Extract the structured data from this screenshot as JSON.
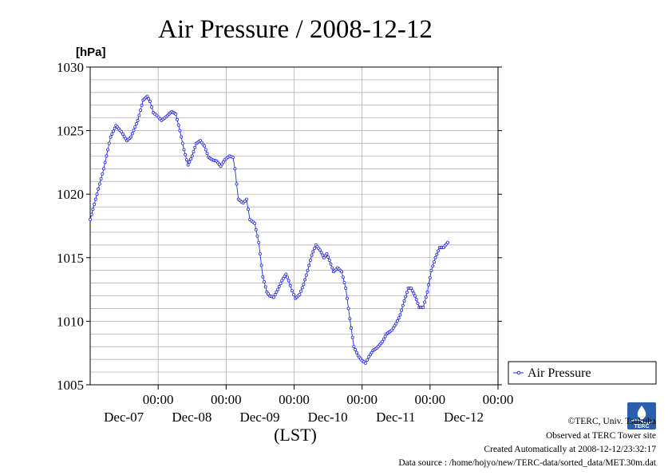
{
  "chart_data": {
    "type": "line",
    "title": "Air Pressure / 2008-12-12",
    "ylabel": "[hPa]",
    "xlabel": "(LST)",
    "ylim": [
      1005,
      1030
    ],
    "yticks": [
      1005,
      1010,
      1015,
      1020,
      1025,
      1030
    ],
    "xlim": [
      0,
      6
    ],
    "xticks": [
      {
        "pos": 1,
        "time": "00:00",
        "date": "Dec-07"
      },
      {
        "pos": 2,
        "time": "00:00",
        "date": "Dec-08"
      },
      {
        "pos": 3,
        "time": "00:00",
        "date": "Dec-09"
      },
      {
        "pos": 4,
        "time": "00:00",
        "date": "Dec-10"
      },
      {
        "pos": 5,
        "time": "00:00",
        "date": "Dec-11"
      },
      {
        "pos": 6,
        "time": "00:00",
        "date": "Dec-12"
      }
    ],
    "grid": true,
    "legend_position": "right",
    "series": [
      {
        "name": "Air Pressure",
        "color": "#2828e0",
        "points": [
          [
            0.0,
            1018.0
          ],
          [
            0.1,
            1020.0
          ],
          [
            0.2,
            1022.0
          ],
          [
            0.3,
            1024.5
          ],
          [
            0.38,
            1025.4
          ],
          [
            0.46,
            1024.9
          ],
          [
            0.54,
            1024.2
          ],
          [
            0.6,
            1024.5
          ],
          [
            0.7,
            1025.8
          ],
          [
            0.78,
            1027.4
          ],
          [
            0.84,
            1027.7
          ],
          [
            0.88,
            1027.3
          ],
          [
            0.93,
            1026.4
          ],
          [
            0.98,
            1026.2
          ],
          [
            1.05,
            1025.8
          ],
          [
            1.12,
            1026.1
          ],
          [
            1.2,
            1026.5
          ],
          [
            1.26,
            1026.3
          ],
          [
            1.32,
            1025.0
          ],
          [
            1.38,
            1023.5
          ],
          [
            1.44,
            1022.3
          ],
          [
            1.5,
            1023.0
          ],
          [
            1.56,
            1024.0
          ],
          [
            1.62,
            1024.2
          ],
          [
            1.68,
            1023.8
          ],
          [
            1.74,
            1022.9
          ],
          [
            1.8,
            1022.7
          ],
          [
            1.86,
            1022.6
          ],
          [
            1.92,
            1022.2
          ],
          [
            1.98,
            1022.7
          ],
          [
            2.05,
            1023.0
          ],
          [
            2.1,
            1022.9
          ],
          [
            2.13,
            1022.0
          ],
          [
            2.18,
            1019.6
          ],
          [
            2.25,
            1019.3
          ],
          [
            2.3,
            1019.6
          ],
          [
            2.35,
            1018.0
          ],
          [
            2.42,
            1017.7
          ],
          [
            2.48,
            1016.2
          ],
          [
            2.54,
            1013.5
          ],
          [
            2.6,
            1012.3
          ],
          [
            2.64,
            1012.0
          ],
          [
            2.7,
            1011.9
          ],
          [
            2.76,
            1012.5
          ],
          [
            2.82,
            1013.2
          ],
          [
            2.88,
            1013.7
          ],
          [
            2.92,
            1013.2
          ],
          [
            2.97,
            1012.4
          ],
          [
            3.02,
            1011.8
          ],
          [
            3.08,
            1012.1
          ],
          [
            3.14,
            1012.9
          ],
          [
            3.2,
            1014.0
          ],
          [
            3.26,
            1015.2
          ],
          [
            3.32,
            1016.0
          ],
          [
            3.38,
            1015.6
          ],
          [
            3.44,
            1015.0
          ],
          [
            3.48,
            1015.3
          ],
          [
            3.52,
            1014.8
          ],
          [
            3.58,
            1013.9
          ],
          [
            3.64,
            1014.2
          ],
          [
            3.7,
            1013.9
          ],
          [
            3.76,
            1012.6
          ],
          [
            3.82,
            1010.2
          ],
          [
            3.88,
            1008.0
          ],
          [
            3.94,
            1007.3
          ],
          [
            4.0,
            1006.9
          ],
          [
            4.05,
            1006.7
          ],
          [
            4.1,
            1007.2
          ],
          [
            4.16,
            1007.7
          ],
          [
            4.22,
            1007.9
          ],
          [
            4.3,
            1008.4
          ],
          [
            4.36,
            1009.0
          ],
          [
            4.44,
            1009.3
          ],
          [
            4.5,
            1009.8
          ],
          [
            4.56,
            1010.5
          ],
          [
            4.62,
            1011.6
          ],
          [
            4.68,
            1012.6
          ],
          [
            4.72,
            1012.6
          ],
          [
            4.78,
            1012.0
          ],
          [
            4.84,
            1011.1
          ],
          [
            4.9,
            1011.1
          ],
          [
            4.96,
            1012.3
          ],
          [
            5.02,
            1014.0
          ],
          [
            5.08,
            1015.0
          ],
          [
            5.14,
            1015.8
          ],
          [
            5.2,
            1015.8
          ],
          [
            5.26,
            1016.2
          ]
        ]
      }
    ]
  },
  "credits": {
    "copyright": "©TERC, Univ. Tsukuba",
    "observed": "Observed at TERC Tower site",
    "created": "Created Automatically at 2008-12-12/23:32:17",
    "source": "Data source : /home/hojyo/new/TERC-data/sorted_data/MET.30m.dat",
    "logo_text": "TERC"
  }
}
